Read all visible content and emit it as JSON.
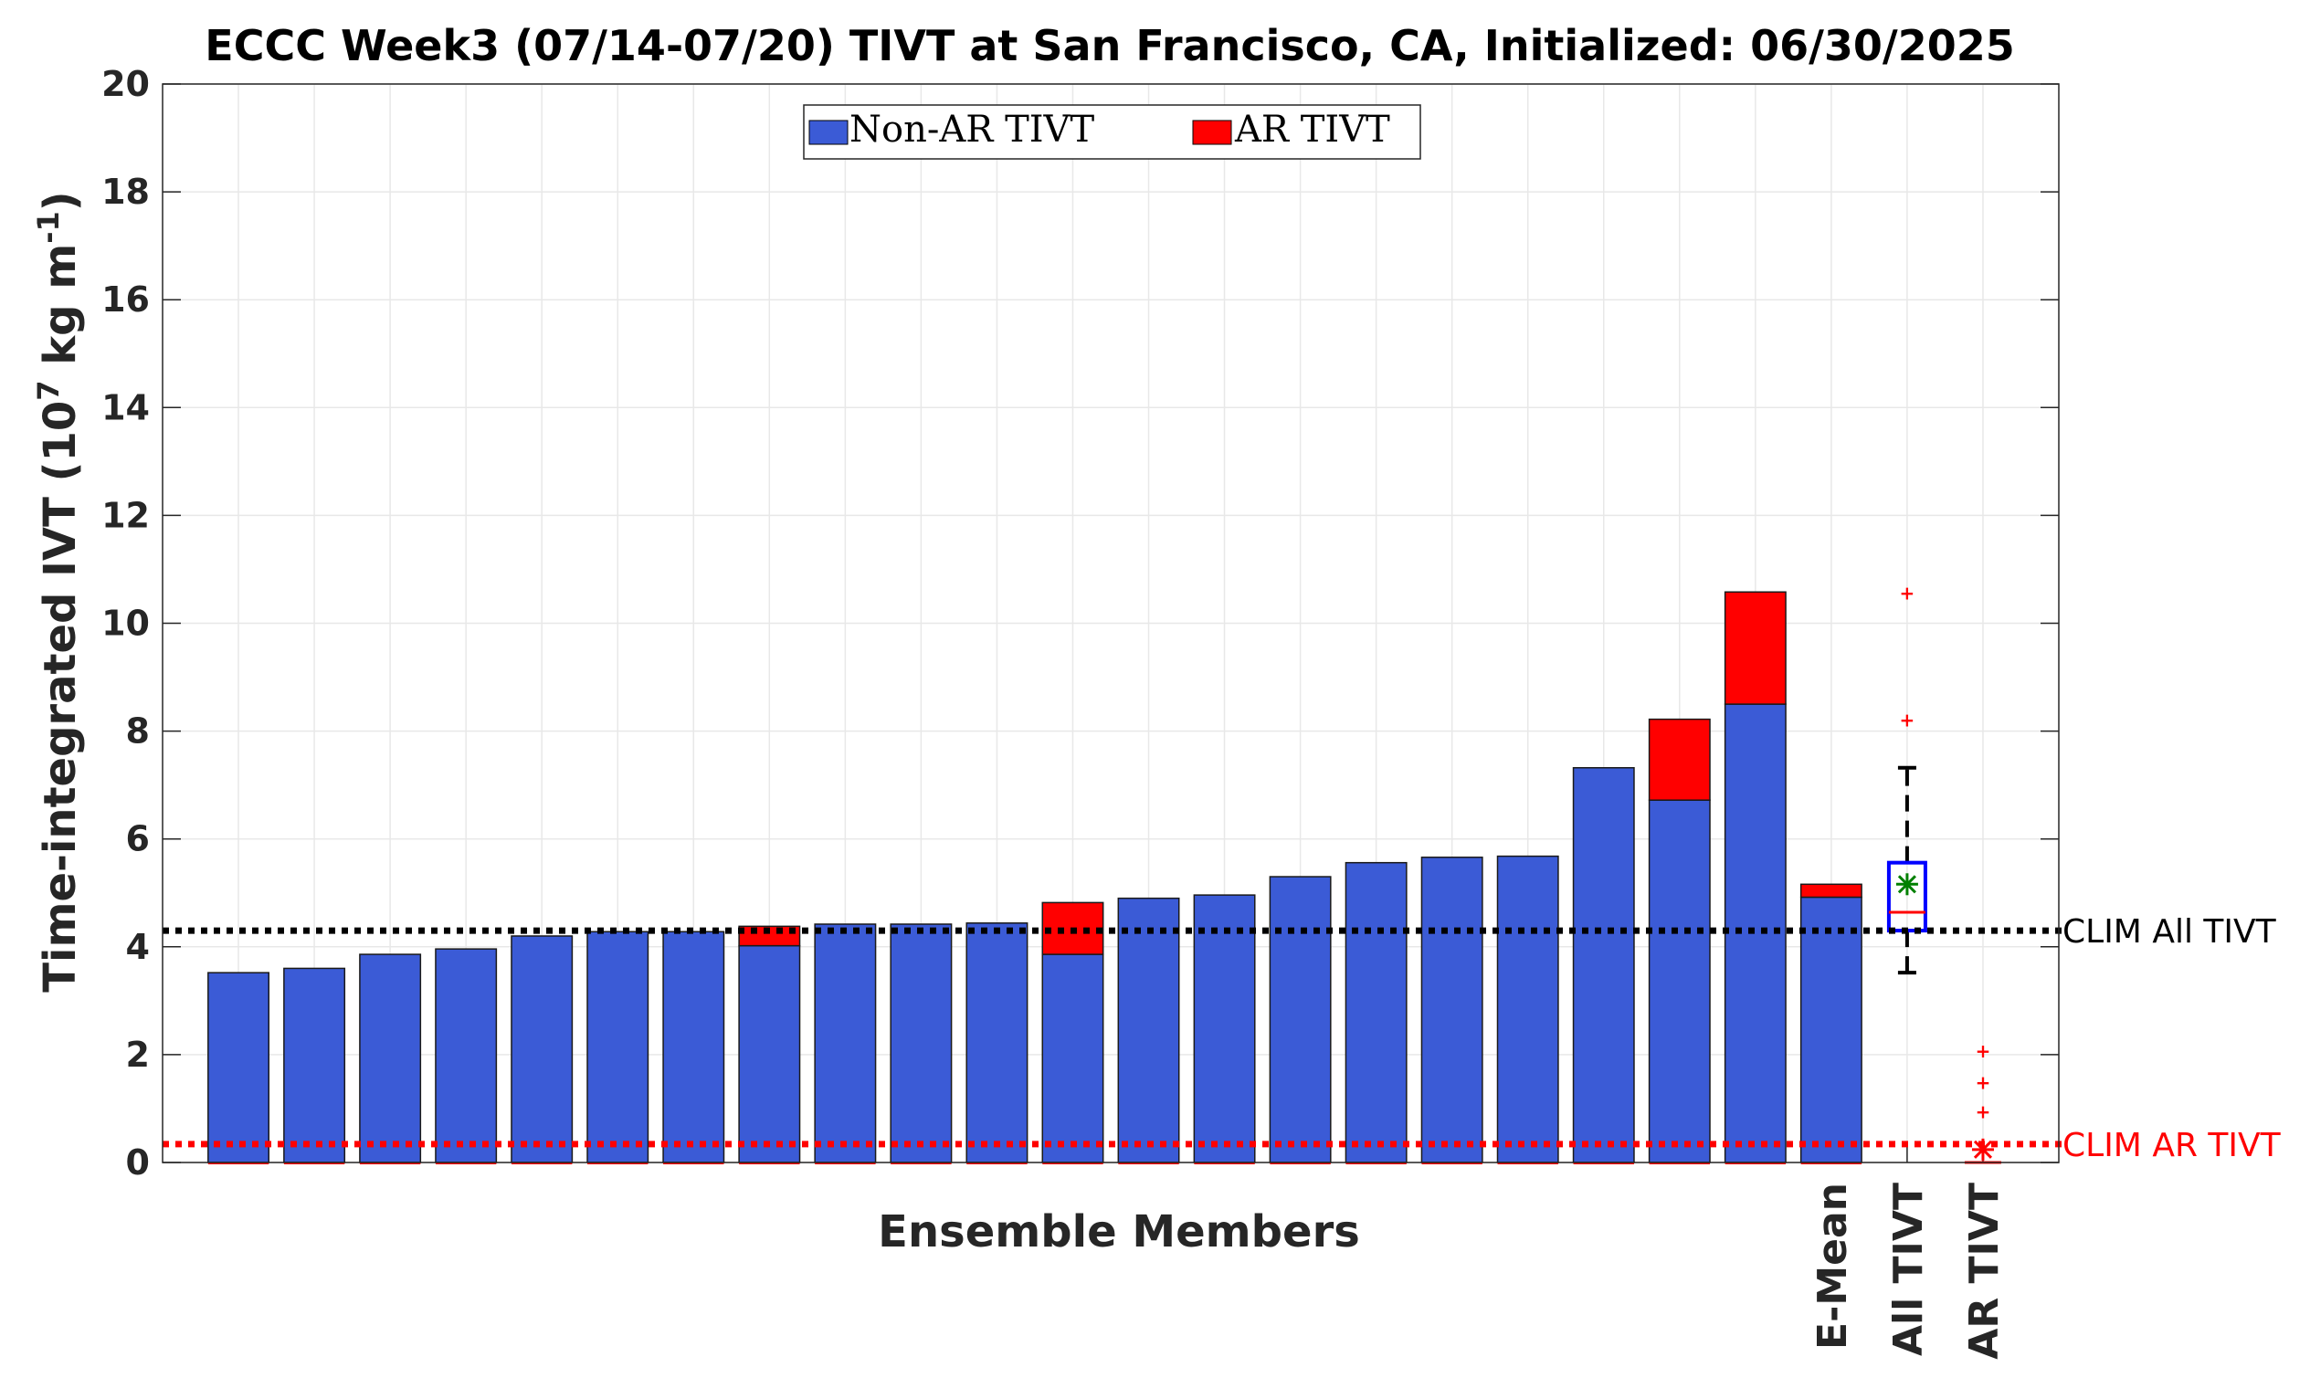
{
  "chart_data": {
    "type": "bar",
    "title": "ECCC Week3 (07/14-07/20) TIVT at San Francisco, CA, Initialized: 06/30/2025",
    "xlabel": "Ensemble Members",
    "ylabel": "Time-integrated IVT (10",
    "ylabel_sup": "7",
    "ylabel_unit": "kg m",
    "ylabel_sup2": "-1",
    "ylabel_close": ")",
    "ylim": [
      0,
      20
    ],
    "yticks": [
      "0",
      "2",
      "4",
      "6",
      "8",
      "10",
      "12",
      "14",
      "16",
      "18",
      "20"
    ],
    "grid": true,
    "legend_position": "top-center",
    "series": [
      {
        "name": "Non-AR TIVT",
        "color": "#3b5bd6",
        "values": [
          3.52,
          3.6,
          3.86,
          3.96,
          4.2,
          4.28,
          4.28,
          4.02,
          4.42,
          4.42,
          4.44,
          3.86,
          4.9,
          4.96,
          5.3,
          5.56,
          5.66,
          5.68,
          7.32,
          6.72,
          8.5,
          4.92
        ]
      },
      {
        "name": "AR TIVT",
        "color": "#ff0000",
        "values": [
          0,
          0,
          0,
          0,
          0,
          0,
          0,
          0.36,
          0,
          0,
          0,
          0.96,
          0,
          0,
          0,
          0,
          0,
          0,
          0,
          1.5,
          2.08,
          0.24
        ]
      }
    ],
    "category_labels": [
      "",
      "",
      "",
      "",
      "",
      "",
      "",
      "",
      "",
      "",
      "",
      "",
      "",
      "",
      "",
      "",
      "",
      "",
      "",
      "",
      "",
      "E-Mean",
      "All TIVT",
      "AR TIVT"
    ],
    "boxplots": [
      {
        "name": "All TIVT",
        "q1": 4.3,
        "median": 4.64,
        "q3": 5.56,
        "whisker_low": 3.52,
        "whisker_high": 7.32,
        "mean": 5.16,
        "outliers": [
          8.22,
          10.58
        ]
      },
      {
        "name": "AR TIVT",
        "q1": 0,
        "median": 0,
        "q3": 0,
        "whisker_low": 0,
        "whisker_high": 0,
        "mean": 0.24,
        "outliers": [
          0.96,
          1.5,
          2.08
        ]
      }
    ],
    "reference_lines": [
      {
        "label": "CLIM All TIVT",
        "value": 4.3,
        "color": "#000000"
      },
      {
        "label": "CLIM AR TIVT",
        "value": 0.34,
        "color": "#ff0000"
      }
    ]
  }
}
